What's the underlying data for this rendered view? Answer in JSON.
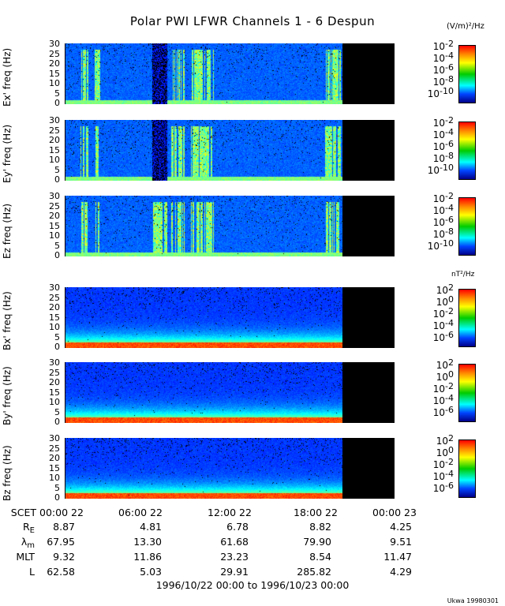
{
  "title": "Polar PWI LFWR Channels 1 - 6 Despun",
  "credit": "Ukwa 19980301",
  "chart_data": {
    "type": "heatmap",
    "title": "Polar PWI LFWR Channels 1 - 6 Despun",
    "xlabel": "1996/10/22 00:00 to 1996/10/23 00:00",
    "x_prefix": "SCET",
    "x_ticks": [
      "00:00 22",
      "06:00 22",
      "12:00 22",
      "18:00 22",
      "00:00 23"
    ],
    "data_end_fraction": 0.84,
    "panels": [
      {
        "ylabel": "Ex' freq (Hz)",
        "yticks": [
          "30",
          "25",
          "20",
          "15",
          "10",
          "5",
          "0"
        ],
        "ylim": [
          0,
          30
        ],
        "kind": "E",
        "colorbar": {
          "ticks": [
            "-2",
            "-4",
            "-6",
            "-8",
            "-10"
          ],
          "base": "10",
          "unit": "(V/m)²/Hz"
        }
      },
      {
        "ylabel": "Ey' freq (Hz)",
        "yticks": [
          "30",
          "25",
          "20",
          "15",
          "10",
          "5",
          "0"
        ],
        "ylim": [
          0,
          30
        ],
        "kind": "E",
        "colorbar": {
          "ticks": [
            "-2",
            "-4",
            "-6",
            "-8",
            "-10"
          ],
          "base": "10"
        }
      },
      {
        "ylabel": "Ez freq (Hz)",
        "yticks": [
          "30",
          "25",
          "20",
          "15",
          "10",
          "5",
          "0"
        ],
        "ylim": [
          0,
          30
        ],
        "kind": "E",
        "colorbar": {
          "ticks": [
            "-2",
            "-4",
            "-6",
            "-8",
            "-10"
          ],
          "base": "10"
        }
      },
      {
        "ylabel": "Bx' freq (Hz)",
        "yticks": [
          "30",
          "25",
          "20",
          "15",
          "10",
          "5",
          "0"
        ],
        "ylim": [
          0,
          30
        ],
        "kind": "B",
        "colorbar": {
          "ticks": [
            "2",
            "0",
            "-2",
            "-4",
            "-6"
          ],
          "base": "10",
          "unit": "nT²/Hz"
        }
      },
      {
        "ylabel": "By' freq (Hz)",
        "yticks": [
          "30",
          "25",
          "20",
          "15",
          "10",
          "5",
          "0"
        ],
        "ylim": [
          0,
          30
        ],
        "kind": "B",
        "colorbar": {
          "ticks": [
            "2",
            "0",
            "-2",
            "-4",
            "-6"
          ],
          "base": "10"
        }
      },
      {
        "ylabel": "Bz freq (Hz)",
        "yticks": [
          "30",
          "25",
          "20",
          "15",
          "10",
          "5",
          "0"
        ],
        "ylim": [
          0,
          30
        ],
        "kind": "B",
        "colorbar": {
          "ticks": [
            "2",
            "0",
            "-2",
            "-4",
            "-6"
          ],
          "base": "10"
        }
      }
    ],
    "ephemeris": [
      {
        "label": "R",
        "sub": "E",
        "values": [
          "8.87",
          "4.81",
          "6.78",
          "8.82",
          "4.25"
        ]
      },
      {
        "label": "λ",
        "sub": "m",
        "values": [
          "67.95",
          "13.30",
          "61.68",
          "79.90",
          "9.51"
        ]
      },
      {
        "label": "MLT",
        "sub": "",
        "values": [
          "9.32",
          "11.86",
          "23.23",
          "8.54",
          "11.47"
        ]
      },
      {
        "label": "L",
        "sub": "",
        "values": [
          "62.58",
          "5.03",
          "29.91",
          "285.82",
          "4.29"
        ]
      }
    ]
  }
}
